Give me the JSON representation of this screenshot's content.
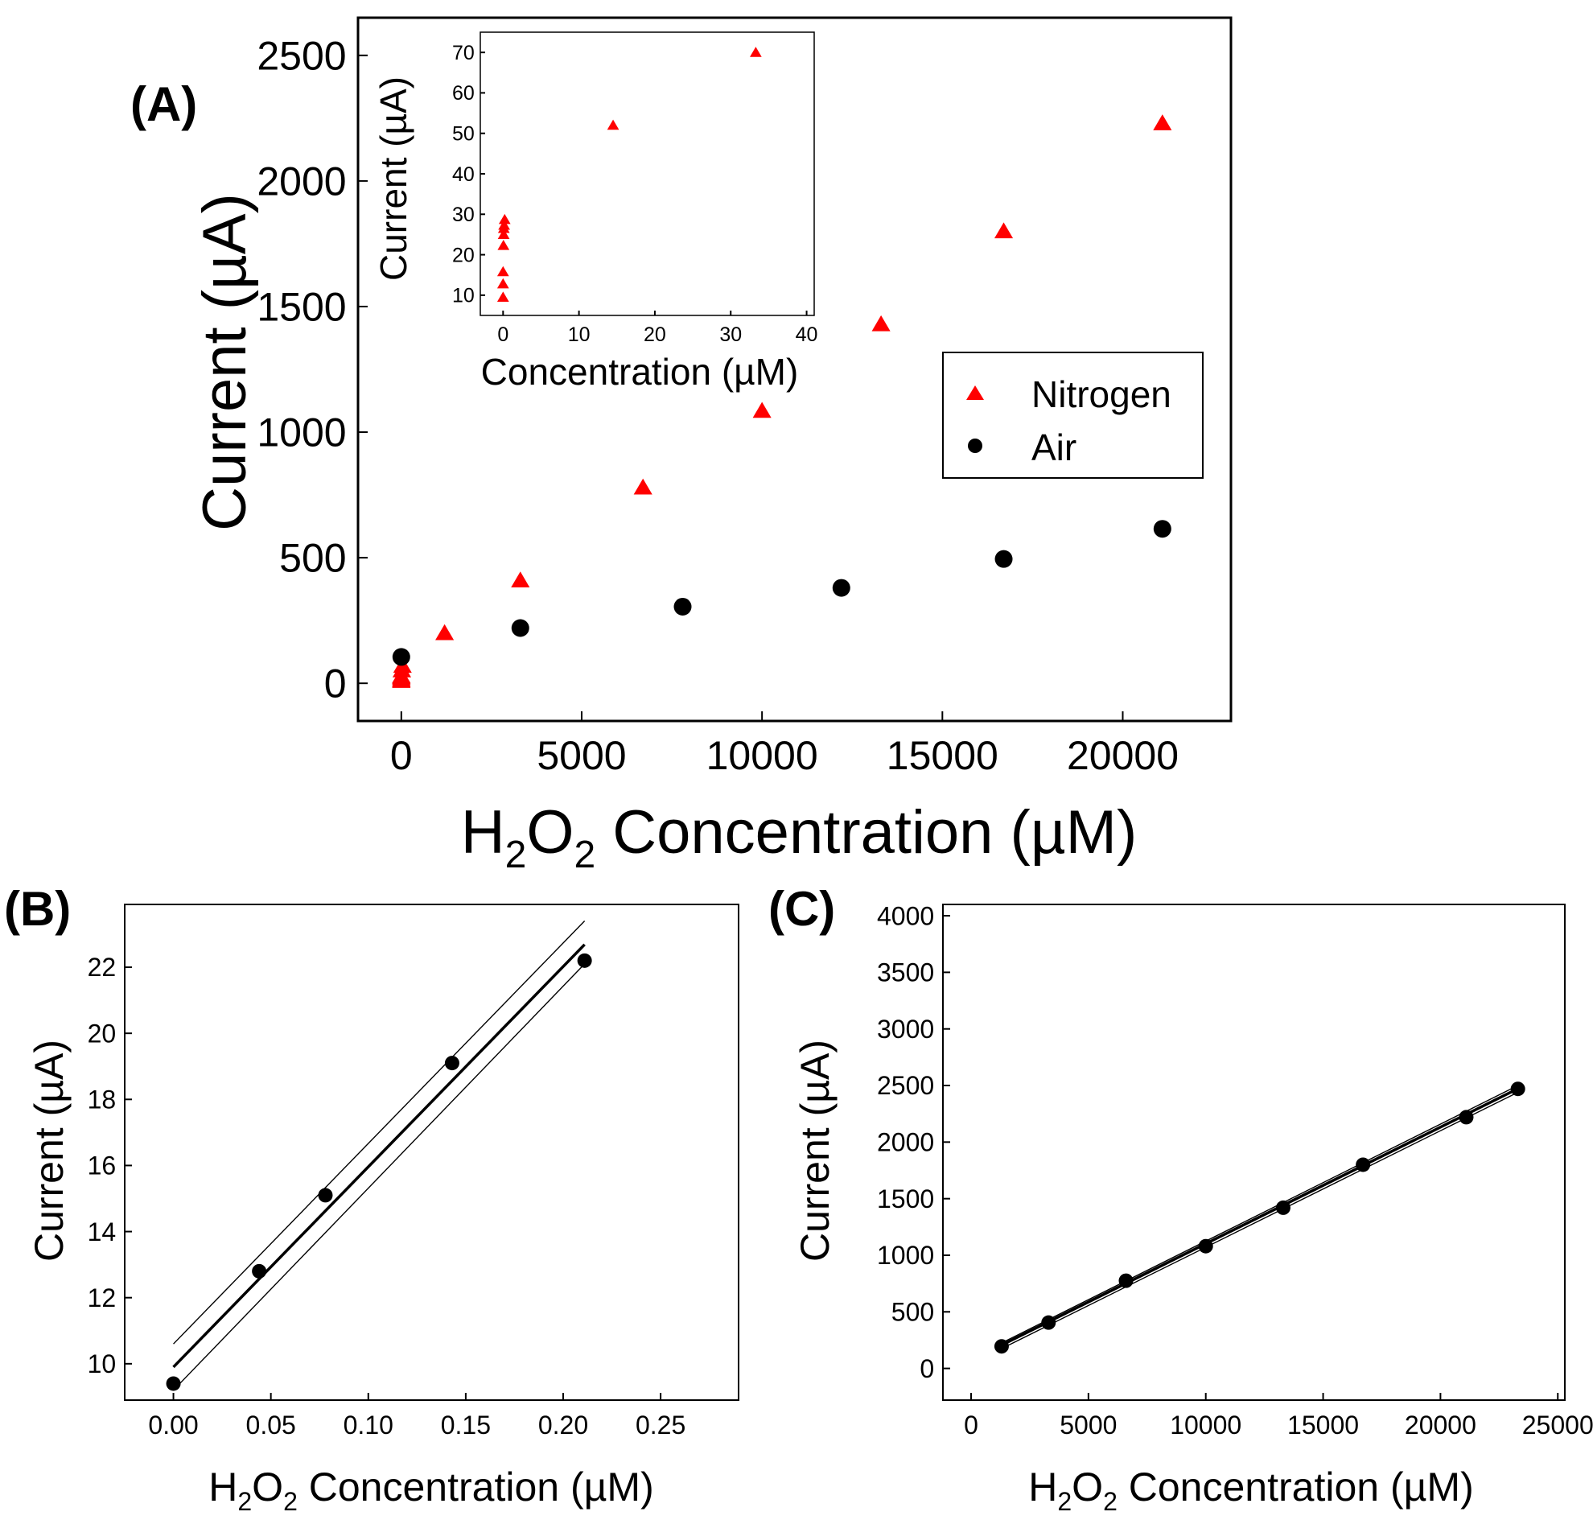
{
  "colors": {
    "nitrogen": "#ff0000",
    "air": "#000000",
    "axis": "#000000",
    "background": "#ffffff"
  },
  "chart_data": [
    {
      "id": "A",
      "panel_label": "(A)",
      "type": "scatter",
      "xlabel": {
        "prefix": "H",
        "sub1": "2",
        "mid": "O",
        "sub2": "2",
        "rest": " Concentration (µM)"
      },
      "ylabel": "Current (µA)",
      "xlim": [
        -1200,
        23000
      ],
      "ylim": [
        -150,
        2650
      ],
      "xticks": [
        0,
        5000,
        10000,
        15000,
        20000
      ],
      "yticks": [
        0,
        500,
        1000,
        1500,
        2000,
        2500
      ],
      "legend": {
        "position": "center-right",
        "entries": [
          "Nitrogen",
          "Air"
        ]
      },
      "series": [
        {
          "name": "Nitrogen",
          "marker": "triangle",
          "color": "#ff0000",
          "points": [
            [
              0,
              10
            ],
            [
              0,
              14
            ],
            [
              0,
              17
            ],
            [
              0,
              23
            ],
            [
              0,
              26
            ],
            [
              0,
              29
            ],
            [
              15,
              52
            ],
            [
              33,
              70
            ],
            [
              1200,
              200
            ],
            [
              3300,
              410
            ],
            [
              6700,
              780
            ],
            [
              10000,
              1085
            ],
            [
              13300,
              1430
            ],
            [
              16700,
              1800
            ],
            [
              21100,
              2230
            ]
          ]
        },
        {
          "name": "Air",
          "marker": "circle",
          "color": "#000000",
          "points": [
            [
              0,
              105
            ],
            [
              3300,
              220
            ],
            [
              7800,
              305
            ],
            [
              12200,
              380
            ],
            [
              16700,
              495
            ],
            [
              21100,
              615
            ]
          ]
        }
      ]
    },
    {
      "id": "A-inset",
      "type": "scatter",
      "xlabel": "Concentration (µM)",
      "ylabel": "Current (µA)",
      "xlim": [
        -3,
        41
      ],
      "ylim": [
        5,
        75
      ],
      "xticks": [
        0,
        10,
        20,
        30,
        40
      ],
      "yticks": [
        10,
        20,
        30,
        40,
        50,
        60,
        70
      ],
      "series": [
        {
          "name": "Nitrogen",
          "marker": "triangle",
          "color": "#ff0000",
          "points": [
            [
              0,
              9.5
            ],
            [
              0,
              12.8
            ],
            [
              0,
              15.8
            ],
            [
              0.05,
              22.3
            ],
            [
              0.08,
              25
            ],
            [
              0.1,
              26.5
            ],
            [
              0.14,
              27.3
            ],
            [
              0.21,
              28.7
            ],
            [
              14.5,
              52
            ],
            [
              33.3,
              70
            ]
          ]
        }
      ]
    },
    {
      "id": "B",
      "panel_label": "(B)",
      "type": "scatter",
      "xlabel": {
        "prefix": "H",
        "sub1": "2",
        "mid": "O",
        "sub2": "2",
        "rest": " Concentration (µM)"
      },
      "ylabel": "Current (µA)",
      "xlim": [
        -0.025,
        0.29
      ],
      "ylim": [
        8.9,
        23.9
      ],
      "xticks": [
        0.0,
        0.05,
        0.1,
        0.15,
        0.2,
        0.25
      ],
      "xtick_labels": [
        "0.00",
        "0.05",
        "0.10",
        "0.15",
        "0.20",
        "0.25"
      ],
      "yticks": [
        10,
        12,
        14,
        16,
        18,
        20,
        22
      ],
      "series": [
        {
          "name": "data",
          "marker": "circle",
          "color": "#000000",
          "points": [
            [
              0.0,
              9.4
            ],
            [
              0.044,
              12.8
            ],
            [
              0.078,
              15.1
            ],
            [
              0.143,
              19.1
            ],
            [
              0.211,
              22.2
            ]
          ]
        }
      ],
      "fit": {
        "x": [
          0.0,
          0.211
        ],
        "slope": 60.6,
        "intercept": 9.9
      },
      "band": {
        "upper": [
          [
            0.0,
            10.6
          ],
          [
            0.211,
            23.4
          ]
        ],
        "lower": [
          [
            0.0,
            9.2
          ],
          [
            0.211,
            22.1
          ]
        ]
      }
    },
    {
      "id": "C",
      "panel_label": "(C)",
      "type": "scatter",
      "xlabel": {
        "prefix": "H",
        "sub1": "2",
        "mid": "O",
        "sub2": "2",
        "rest": " Concentration (µM)"
      },
      "ylabel": "Current (µA)",
      "xlim": [
        -1200,
        25300
      ],
      "ylim": [
        -280,
        4100
      ],
      "xticks": [
        0,
        5000,
        10000,
        15000,
        20000,
        25000
      ],
      "yticks": [
        0,
        500,
        1000,
        1500,
        2000,
        2500,
        3000,
        3500,
        4000
      ],
      "series": [
        {
          "name": "data",
          "marker": "circle",
          "color": "#000000",
          "points": [
            [
              1300,
              195
            ],
            [
              3300,
              405
            ],
            [
              6600,
              775
            ],
            [
              10000,
              1080
            ],
            [
              13300,
              1420
            ],
            [
              16700,
              1800
            ],
            [
              21100,
              2220
            ],
            [
              23300,
              2470
            ]
          ]
        }
      ],
      "fit": {
        "x": [
          1300,
          23300
        ],
        "slope": 0.103,
        "intercept": 72
      },
      "band": {
        "upper": [
          [
            1300,
            225
          ],
          [
            23300,
            2500
          ]
        ],
        "lower": [
          [
            1300,
            175
          ],
          [
            23300,
            2440
          ]
        ]
      }
    }
  ]
}
